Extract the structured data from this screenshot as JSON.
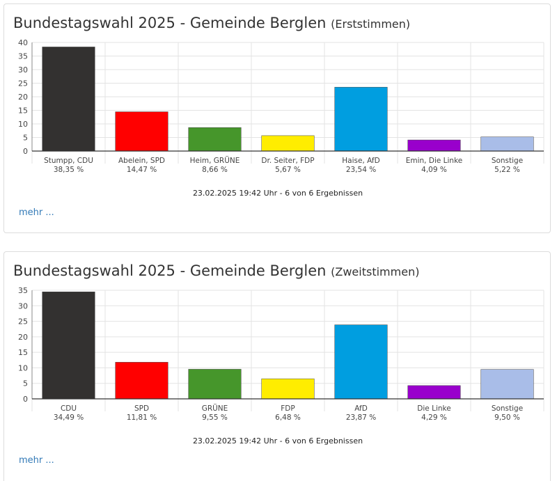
{
  "panels": [
    {
      "title_main": "Bundestagswahl 2025 - Gemeinde Berglen",
      "title_sub": "(Erststimmen)",
      "stand": "23.02.2025 19:42 Uhr - 6 von 6 Ergebnissen",
      "more_label": "mehr ...",
      "chart_data": {
        "type": "bar",
        "categories": [
          "Stumpp, CDU",
          "Abelein, SPD",
          "Heim, GRÜNE",
          "Dr. Seiter, FDP",
          "Haise, AfD",
          "Emin, Die Linke",
          "Sonstige"
        ],
        "value_labels": [
          "38,35 %",
          "14,47 %",
          "8,66 %",
          "5,67 %",
          "23,54 %",
          "4,09 %",
          "5,22 %"
        ],
        "values": [
          38.35,
          14.47,
          8.66,
          5.67,
          23.54,
          4.09,
          5.22
        ],
        "colors": [
          "#333130",
          "#ff0000",
          "#46962b",
          "#ffed00",
          "#009ee0",
          "#9900cc",
          "#a9bde8"
        ],
        "yticks": [
          0,
          5,
          10,
          15,
          20,
          25,
          30,
          35,
          40
        ],
        "ylim": [
          0,
          40
        ],
        "grid": true,
        "legend": "none"
      }
    },
    {
      "title_main": "Bundestagswahl 2025 - Gemeinde Berglen",
      "title_sub": "(Zweitstimmen)",
      "stand": "23.02.2025 19:42 Uhr - 6 von 6 Ergebnissen",
      "more_label": "mehr ...",
      "chart_data": {
        "type": "bar",
        "categories": [
          "CDU",
          "SPD",
          "GRÜNE",
          "FDP",
          "AfD",
          "Die Linke",
          "Sonstige"
        ],
        "value_labels": [
          "34,49 %",
          "11,81 %",
          "9,55 %",
          "6,48 %",
          "23,87 %",
          "4,29 %",
          "9,50 %"
        ],
        "values": [
          34.49,
          11.81,
          9.55,
          6.48,
          23.87,
          4.29,
          9.5
        ],
        "colors": [
          "#333130",
          "#ff0000",
          "#46962b",
          "#ffed00",
          "#009ee0",
          "#9900cc",
          "#a9bde8"
        ],
        "yticks": [
          0,
          5,
          10,
          15,
          20,
          25,
          30,
          35
        ],
        "ylim": [
          0,
          35
        ],
        "grid": true,
        "legend": "none"
      }
    }
  ]
}
